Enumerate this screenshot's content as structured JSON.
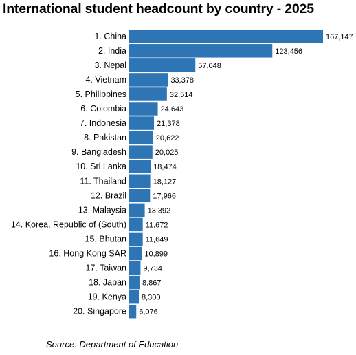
{
  "chart_data": {
    "type": "bar",
    "orientation": "horizontal",
    "title": "International student headcount by country - 2025",
    "categories": [
      "1. China",
      "2. India",
      "3. Nepal",
      "4. Vietnam",
      "5. Philippines",
      "6. Colombia",
      "7. Indonesia",
      "8. Pakistan",
      "9. Bangladesh",
      "10. Sri Lanka",
      "11. Thailand",
      "12. Brazil",
      "13. Malaysia",
      "14. Korea, Republic of (South)",
      "15. Bhutan",
      "16. Hong Kong SAR",
      "17. Taiwan",
      "18. Japan",
      "19. Kenya",
      "20. Singapore"
    ],
    "values": [
      167147,
      123456,
      57048,
      33378,
      32514,
      24643,
      21378,
      20622,
      20025,
      18474,
      18127,
      17966,
      13392,
      11672,
      11649,
      10899,
      9734,
      8867,
      8300,
      6076
    ],
    "value_labels": [
      "167,147",
      "123,456",
      "57,048",
      "33,378",
      "32,514",
      "24,643",
      "21,378",
      "20,622",
      "20,025",
      "18,474",
      "18,127",
      "17,966",
      "13,392",
      "11,672",
      "11,649",
      "10,899",
      "9,734",
      "8,867",
      "8,300",
      "6,076"
    ],
    "bar_color": "#2e75b6",
    "grid": false,
    "legend": "none",
    "xlabel": "",
    "ylabel": ""
  },
  "source": "Source: Department of Education"
}
